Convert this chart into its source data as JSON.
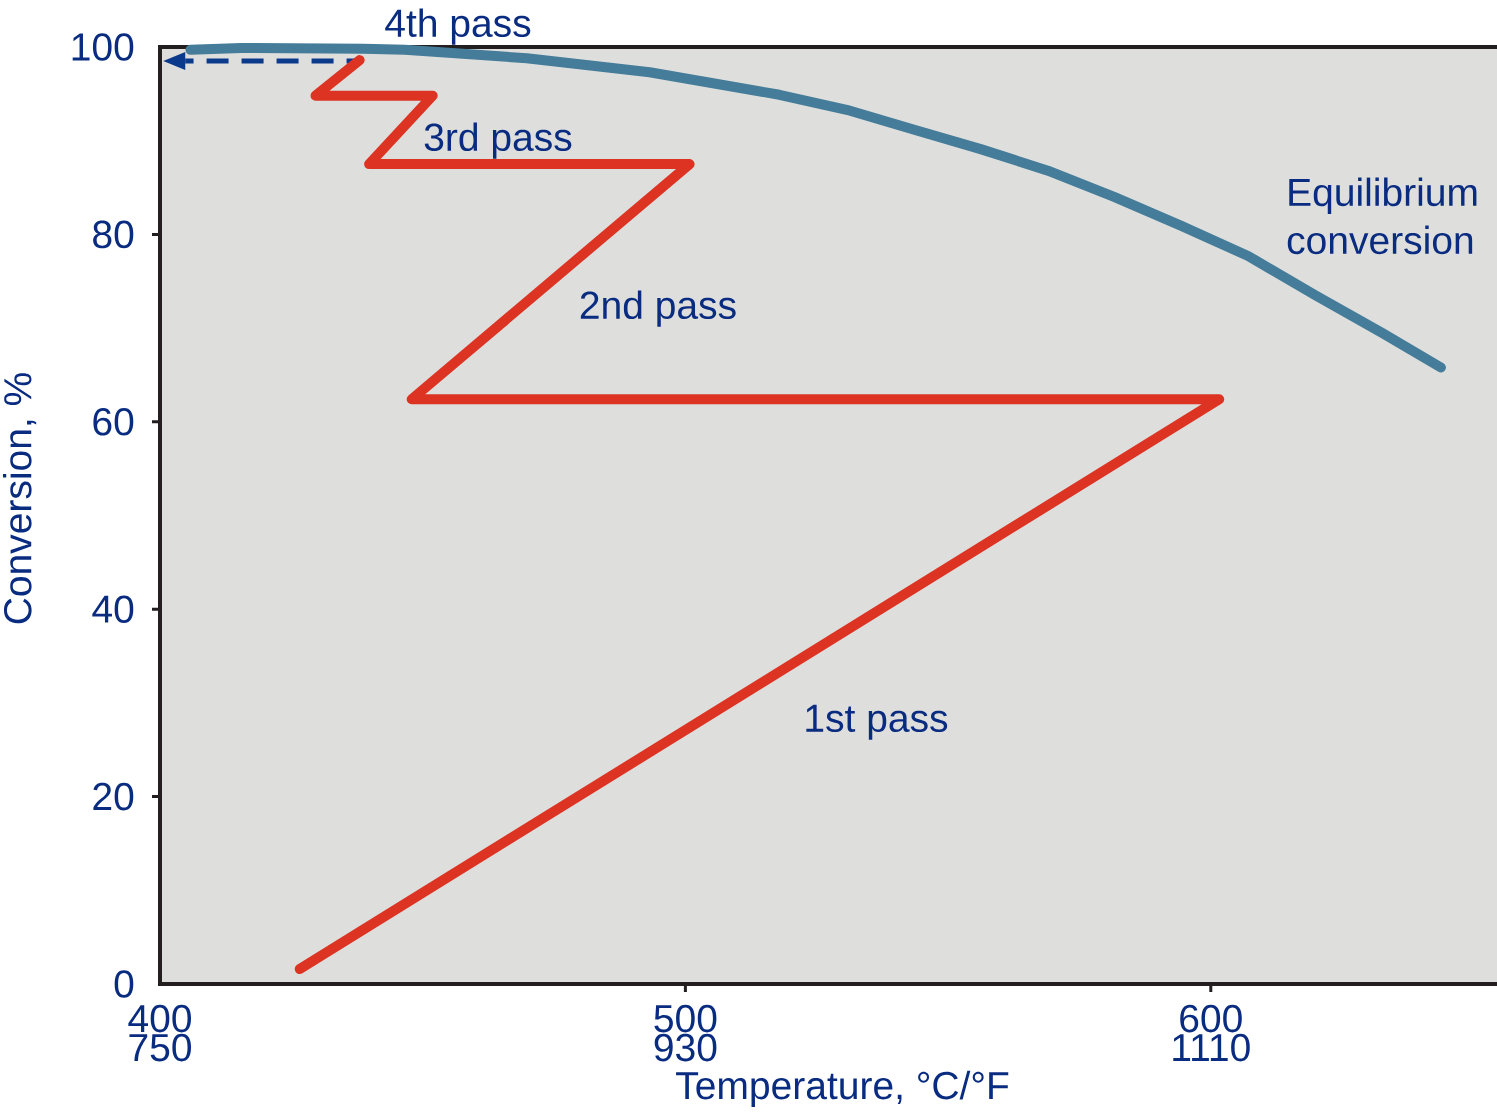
{
  "chart_data": {
    "type": "line",
    "xlabel": "Temperature, °C/°F",
    "ylabel": "Conversion, %",
    "xlim": [
      400,
      656
    ],
    "ylim": [
      0,
      100
    ],
    "xticks": [
      400,
      500,
      600
    ],
    "x2lim": [
      750,
      1210.8
    ],
    "x2ticks": [
      750,
      930,
      1110
    ],
    "yticks": [
      0,
      20,
      40,
      60,
      80,
      100
    ],
    "marker": "none",
    "line_style": "solid",
    "series": [
      {
        "color": "#0b3a8c",
        "line_style": "dashed",
        "x": [
          437.1,
          404.8
        ],
        "values": [
          98.5,
          98.5
        ]
      },
      {
        "color": "#dc3323",
        "x": [
          426.6,
          601.6,
          447.9,
          500.8,
          439.8,
          451.9,
          429.6,
          438.0
        ],
        "values": [
          1.6,
          62.4,
          62.4,
          87.5,
          87.5,
          94.8,
          94.8,
          98.6
        ]
      },
      {
        "name": "Equilibrium conversion",
        "color": "#447c99",
        "x": [
          405.8,
          415.5,
          438.8,
          446.6,
          469.8,
          493.2,
          517.9,
          530.7,
          543.4,
          556.2,
          569.0,
          581.6,
          594.4,
          607.1,
          619.9,
          632.6,
          643.8
        ],
        "values": [
          99.7,
          99.9,
          99.8,
          99.7,
          98.8,
          97.3,
          94.9,
          93.3,
          91.2,
          89.1,
          86.8,
          84.0,
          80.9,
          77.7,
          73.5,
          69.5,
          65.8
        ]
      }
    ],
    "annotations": [
      "4th pass",
      "3rd pass",
      "2nd pass",
      "1st pass"
    ]
  }
}
